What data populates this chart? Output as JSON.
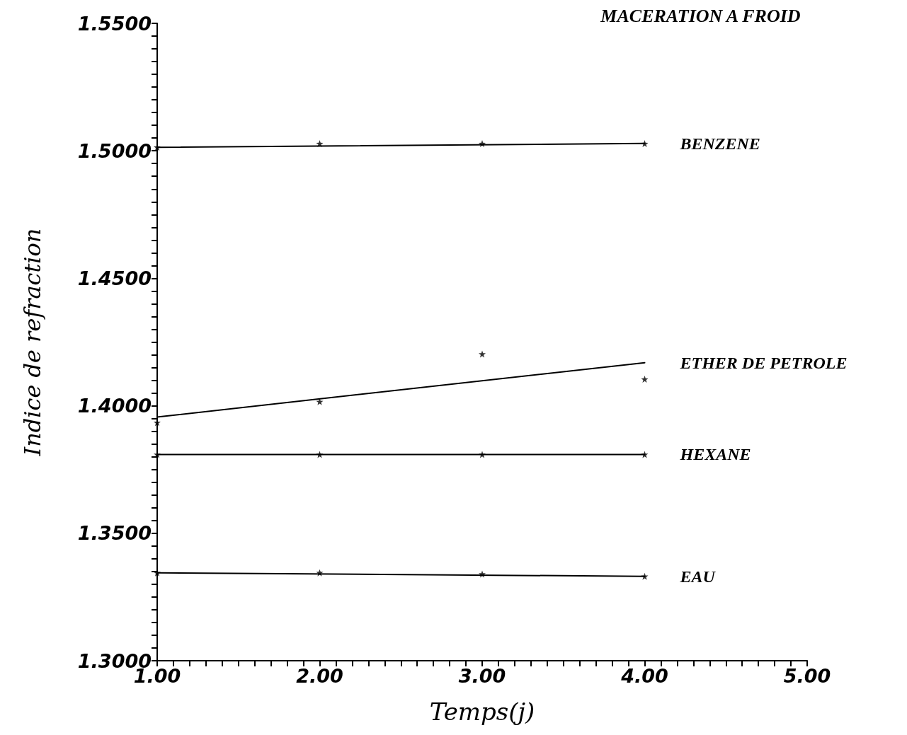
{
  "chart_data": {
    "type": "scatter",
    "title": "MACERATION A FROID",
    "xlabel": "Temps(j)",
    "ylabel": "Indice de refraction",
    "xlim": [
      1,
      5
    ],
    "ylim": [
      1.3,
      1.55
    ],
    "grid": false,
    "legend": false,
    "marker": "star",
    "xticks": [
      {
        "value": 1,
        "label": "1.00"
      },
      {
        "value": 1.1,
        "label": null
      },
      {
        "value": 1.2,
        "label": null
      },
      {
        "value": 1.3,
        "label": null
      },
      {
        "value": 1.4,
        "label": null
      },
      {
        "value": 1.5,
        "label": null
      },
      {
        "value": 1.6,
        "label": null
      },
      {
        "value": 1.7,
        "label": null
      },
      {
        "value": 1.8,
        "label": null
      },
      {
        "value": 1.9,
        "label": null
      },
      {
        "value": 2,
        "label": "2.00"
      },
      {
        "value": 2.1,
        "label": null
      },
      {
        "value": 2.2,
        "label": null
      },
      {
        "value": 2.3,
        "label": null
      },
      {
        "value": 2.4,
        "label": null
      },
      {
        "value": 2.5,
        "label": null
      },
      {
        "value": 2.6,
        "label": null
      },
      {
        "value": 2.7,
        "label": null
      },
      {
        "value": 2.8,
        "label": null
      },
      {
        "value": 2.9,
        "label": null
      },
      {
        "value": 3,
        "label": "3.00"
      },
      {
        "value": 3.1,
        "label": null
      },
      {
        "value": 3.2,
        "label": null
      },
      {
        "value": 3.3,
        "label": null
      },
      {
        "value": 3.4,
        "label": null
      },
      {
        "value": 3.5,
        "label": null
      },
      {
        "value": 3.6,
        "label": null
      },
      {
        "value": 3.7,
        "label": null
      },
      {
        "value": 3.8,
        "label": null
      },
      {
        "value": 3.9,
        "label": null
      },
      {
        "value": 4,
        "label": "4.00"
      },
      {
        "value": 4.1,
        "label": null
      },
      {
        "value": 4.2,
        "label": null
      },
      {
        "value": 4.3,
        "label": null
      },
      {
        "value": 4.4,
        "label": null
      },
      {
        "value": 4.5,
        "label": null
      },
      {
        "value": 4.6,
        "label": null
      },
      {
        "value": 4.7,
        "label": null
      },
      {
        "value": 4.8,
        "label": null
      },
      {
        "value": 4.9,
        "label": null
      },
      {
        "value": 5,
        "label": "5.00"
      }
    ],
    "yticks": [
      {
        "value": 1.3,
        "label": "1.3000"
      },
      {
        "value": 1.305,
        "label": null
      },
      {
        "value": 1.31,
        "label": null
      },
      {
        "value": 1.315,
        "label": null
      },
      {
        "value": 1.32,
        "label": null
      },
      {
        "value": 1.325,
        "label": null
      },
      {
        "value": 1.33,
        "label": null
      },
      {
        "value": 1.335,
        "label": null
      },
      {
        "value": 1.34,
        "label": null
      },
      {
        "value": 1.345,
        "label": null
      },
      {
        "value": 1.35,
        "label": "1.3500"
      },
      {
        "value": 1.355,
        "label": null
      },
      {
        "value": 1.36,
        "label": null
      },
      {
        "value": 1.365,
        "label": null
      },
      {
        "value": 1.37,
        "label": null
      },
      {
        "value": 1.375,
        "label": null
      },
      {
        "value": 1.38,
        "label": null
      },
      {
        "value": 1.385,
        "label": null
      },
      {
        "value": 1.39,
        "label": null
      },
      {
        "value": 1.395,
        "label": null
      },
      {
        "value": 1.4,
        "label": "1.4000"
      },
      {
        "value": 1.405,
        "label": null
      },
      {
        "value": 1.41,
        "label": null
      },
      {
        "value": 1.415,
        "label": null
      },
      {
        "value": 1.42,
        "label": null
      },
      {
        "value": 1.425,
        "label": null
      },
      {
        "value": 1.43,
        "label": null
      },
      {
        "value": 1.435,
        "label": null
      },
      {
        "value": 1.44,
        "label": null
      },
      {
        "value": 1.445,
        "label": null
      },
      {
        "value": 1.45,
        "label": "1.4500"
      },
      {
        "value": 1.455,
        "label": null
      },
      {
        "value": 1.46,
        "label": null
      },
      {
        "value": 1.465,
        "label": null
      },
      {
        "value": 1.47,
        "label": null
      },
      {
        "value": 1.475,
        "label": null
      },
      {
        "value": 1.48,
        "label": null
      },
      {
        "value": 1.485,
        "label": null
      },
      {
        "value": 1.49,
        "label": null
      },
      {
        "value": 1.495,
        "label": null
      },
      {
        "value": 1.5,
        "label": "1.5000"
      },
      {
        "value": 1.505,
        "label": null
      },
      {
        "value": 1.51,
        "label": null
      },
      {
        "value": 1.515,
        "label": null
      },
      {
        "value": 1.52,
        "label": null
      },
      {
        "value": 1.525,
        "label": null
      },
      {
        "value": 1.53,
        "label": null
      },
      {
        "value": 1.535,
        "label": null
      },
      {
        "value": 1.54,
        "label": null
      },
      {
        "value": 1.545,
        "label": null
      },
      {
        "value": 1.55,
        "label": "1.5500"
      }
    ],
    "series": [
      {
        "color": "#000000",
        "x": [
          1,
          2,
          3,
          4
        ],
        "values": [
          1.5014,
          1.5028,
          1.5028,
          1.5028
        ]
      },
      {
        "type": "line",
        "name": "BENZENE",
        "color": "#000000",
        "marker": "none",
        "line_style": "solid",
        "x": [
          1,
          4
        ],
        "values": [
          1.5014,
          1.5029
        ]
      },
      {
        "color": "#000000",
        "x": [
          1,
          2,
          3,
          4
        ],
        "values": [
          1.3934,
          1.4016,
          1.4203,
          1.4104
        ]
      },
      {
        "type": "line",
        "name": "ETHER DE PETROLE",
        "color": "#000000",
        "marker": "none",
        "line_style": "solid",
        "x": [
          1,
          4
        ],
        "values": [
          1.3956,
          1.4169
        ]
      },
      {
        "color": "#000000",
        "x": [
          1,
          2,
          3,
          4
        ],
        "values": [
          1.3809,
          1.3809,
          1.3809,
          1.3809
        ]
      },
      {
        "type": "line",
        "name": "HEXANE",
        "color": "#000000",
        "marker": "none",
        "line_style": "solid",
        "x": [
          1,
          4
        ],
        "values": [
          1.3809,
          1.3809
        ]
      },
      {
        "color": "#000000",
        "x": [
          1,
          2,
          3,
          4
        ],
        "values": [
          1.3345,
          1.3345,
          1.334,
          1.3331
        ]
      },
      {
        "type": "line",
        "name": "EAU",
        "color": "#000000",
        "marker": "none",
        "line_style": "solid",
        "x": [
          1,
          4
        ],
        "values": [
          1.3345,
          1.3331
        ]
      }
    ]
  }
}
